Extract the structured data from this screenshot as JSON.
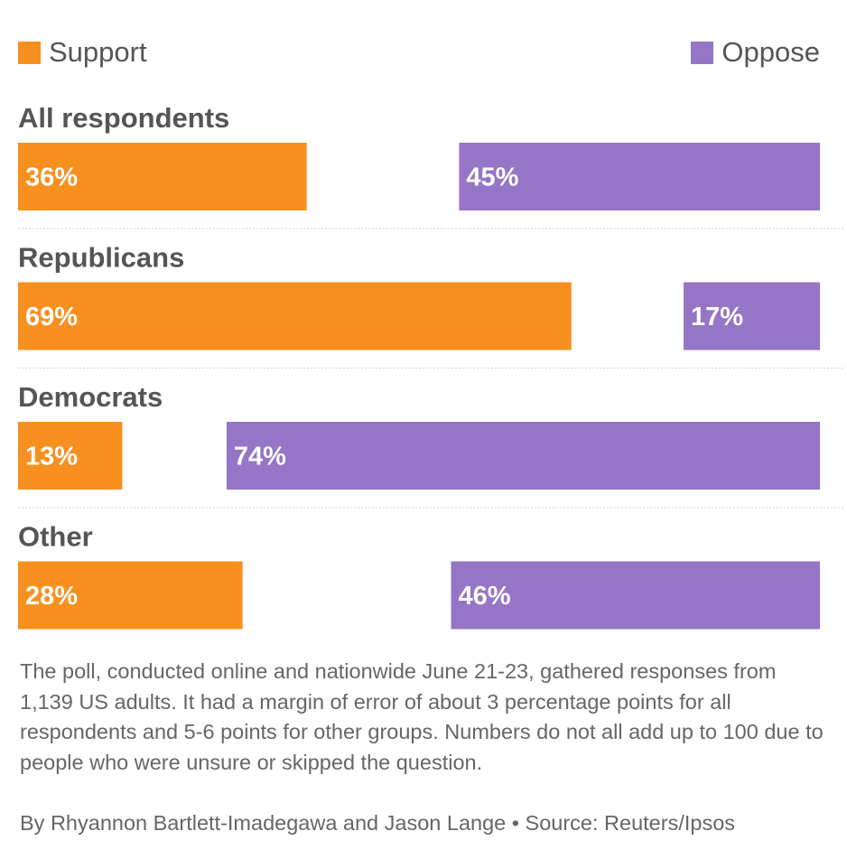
{
  "legend": {
    "support_label": "Support",
    "oppose_label": "Oppose"
  },
  "colors": {
    "support": "#f7901e",
    "oppose": "#9575c5",
    "label_text": "#555555"
  },
  "chart_data": {
    "type": "bar",
    "orientation": "horizontal",
    "categories": [
      "All respondents",
      "Republicans",
      "Democrats",
      "Other"
    ],
    "series": [
      {
        "name": "Support",
        "values": [
          36,
          69,
          13,
          28
        ]
      },
      {
        "name": "Oppose",
        "values": [
          45,
          17,
          74,
          46
        ]
      }
    ],
    "value_labels": {
      "Support": [
        "36%",
        "69%",
        "13%",
        "28%"
      ],
      "Oppose": [
        "45%",
        "17%",
        "74%",
        "46%"
      ]
    },
    "xlim": [
      0,
      100
    ],
    "legend_position": "top",
    "support_anchor": "left",
    "oppose_anchor": "right",
    "grid": false
  },
  "footer": {
    "note": "The poll, conducted online and nationwide June 21-23, gathered responses from 1,139 US adults. It had a margin of error of about 3 percentage points for all respondents and 5-6 points for other groups. Numbers do not all add up to 100 due to people who were unsure or skipped the question.",
    "credit": "By Rhyannon Bartlett-Imadegawa and Jason Lange • Source: Reuters/Ipsos"
  }
}
